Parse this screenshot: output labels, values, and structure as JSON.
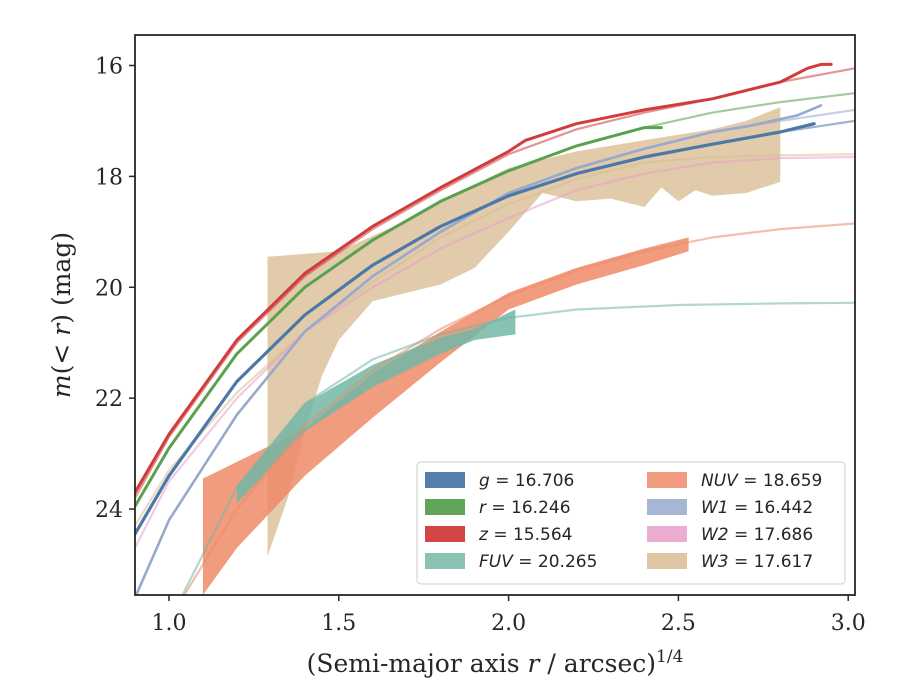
{
  "chart_data": {
    "type": "line",
    "xlabel_main": "(Semi-major axis ",
    "xlabel_var": "r",
    "xlabel_tail": " / arcsec)",
    "xlabel_exp": "1/4",
    "ylabel_main": "m",
    "ylabel_paren": "(< ",
    "ylabel_var": "r",
    "ylabel_tail": ") (mag)",
    "xlim": [
      0.9,
      3.02
    ],
    "ylim": [
      25.55,
      15.45
    ],
    "y_inverted": true,
    "x_ticks": [
      1.0,
      1.5,
      2.0,
      2.5,
      3.0
    ],
    "x_tick_labels": [
      "1.0",
      "1.5",
      "2.0",
      "2.5",
      "3.0"
    ],
    "y_ticks": [
      16,
      18,
      20,
      22,
      24
    ],
    "y_tick_labels": [
      "16",
      "18",
      "20",
      "22",
      "24"
    ],
    "grid": false,
    "legend_position": "lower-right",
    "series": [
      {
        "name": "g",
        "total": "16.706",
        "color": "#4c78a8",
        "model": [
          [
            0.9,
            24.45
          ],
          [
            1.0,
            23.4
          ],
          [
            1.2,
            21.7
          ],
          [
            1.4,
            20.5
          ],
          [
            1.6,
            19.6
          ],
          [
            1.8,
            18.9
          ],
          [
            2.0,
            18.35
          ],
          [
            2.2,
            17.95
          ],
          [
            2.4,
            17.65
          ],
          [
            2.6,
            17.42
          ],
          [
            2.8,
            17.2
          ],
          [
            3.02,
            17.0
          ]
        ],
        "data_end": 2.9
      },
      {
        "name": "r",
        "total": "16.246",
        "color": "#59a14f",
        "model": [
          [
            0.9,
            23.95
          ],
          [
            1.0,
            22.9
          ],
          [
            1.2,
            21.2
          ],
          [
            1.4,
            20.0
          ],
          [
            1.6,
            19.15
          ],
          [
            1.8,
            18.45
          ],
          [
            2.0,
            17.9
          ],
          [
            2.2,
            17.45
          ],
          [
            2.4,
            17.12
          ],
          [
            2.6,
            16.85
          ],
          [
            2.8,
            16.66
          ],
          [
            3.02,
            16.5
          ]
        ],
        "data_end": 2.45
      },
      {
        "name": "z",
        "total": "15.564",
        "color": "#d03c3c",
        "model": [
          [
            0.9,
            23.8
          ],
          [
            1.0,
            22.7
          ],
          [
            1.2,
            21.0
          ],
          [
            1.4,
            19.8
          ],
          [
            1.6,
            18.95
          ],
          [
            1.8,
            18.25
          ],
          [
            2.0,
            17.6
          ],
          [
            2.2,
            17.15
          ],
          [
            2.4,
            16.85
          ],
          [
            2.6,
            16.6
          ],
          [
            2.8,
            16.3
          ],
          [
            3.02,
            16.05
          ]
        ],
        "data": [
          [
            0.9,
            23.7
          ],
          [
            1.0,
            22.65
          ],
          [
            1.2,
            20.95
          ],
          [
            1.4,
            19.75
          ],
          [
            1.6,
            18.9
          ],
          [
            1.8,
            18.2
          ],
          [
            2.0,
            17.55
          ],
          [
            2.05,
            17.35
          ],
          [
            2.2,
            17.05
          ],
          [
            2.4,
            16.8
          ],
          [
            2.6,
            16.6
          ],
          [
            2.8,
            16.3
          ],
          [
            2.88,
            16.05
          ],
          [
            2.92,
            15.98
          ],
          [
            2.95,
            15.98
          ]
        ]
      },
      {
        "name": "FUV",
        "total": "20.265",
        "color": "#72b7a6",
        "model": [
          [
            1.04,
            25.55
          ],
          [
            1.2,
            23.6
          ],
          [
            1.4,
            22.1
          ],
          [
            1.6,
            21.3
          ],
          [
            1.8,
            20.85
          ],
          [
            2.0,
            20.55
          ],
          [
            2.2,
            20.4
          ],
          [
            2.5,
            20.32
          ],
          [
            2.8,
            20.29
          ],
          [
            3.02,
            20.28
          ]
        ],
        "band_upper": [
          [
            1.2,
            23.6
          ],
          [
            1.4,
            22.1
          ],
          [
            1.6,
            21.4
          ],
          [
            1.8,
            20.9
          ],
          [
            1.9,
            20.75
          ],
          [
            2.02,
            20.4
          ]
        ],
        "band_lower": [
          [
            2.02,
            20.85
          ],
          [
            1.9,
            20.95
          ],
          [
            1.8,
            21.2
          ],
          [
            1.6,
            21.8
          ],
          [
            1.4,
            22.6
          ],
          [
            1.2,
            23.9
          ]
        ]
      },
      {
        "name": "NUV",
        "total": "18.659",
        "color": "#ee8a68",
        "model": [
          [
            1.0,
            26.0
          ],
          [
            1.2,
            24.0
          ],
          [
            1.4,
            22.5
          ],
          [
            1.6,
            21.5
          ],
          [
            1.8,
            20.75
          ],
          [
            2.0,
            20.15
          ],
          [
            2.2,
            19.7
          ],
          [
            2.4,
            19.35
          ],
          [
            2.6,
            19.1
          ],
          [
            2.8,
            18.95
          ],
          [
            3.02,
            18.85
          ]
        ],
        "band_upper": [
          [
            1.1,
            23.45
          ],
          [
            1.3,
            22.85
          ],
          [
            1.4,
            22.55
          ],
          [
            1.6,
            21.55
          ],
          [
            1.8,
            20.8
          ],
          [
            2.0,
            20.1
          ],
          [
            2.2,
            19.65
          ],
          [
            2.4,
            19.3
          ],
          [
            2.53,
            19.1
          ]
        ],
        "band_lower": [
          [
            2.53,
            19.35
          ],
          [
            2.4,
            19.6
          ],
          [
            2.2,
            19.95
          ],
          [
            2.0,
            20.4
          ],
          [
            1.8,
            21.35
          ],
          [
            1.6,
            22.35
          ],
          [
            1.4,
            23.4
          ],
          [
            1.2,
            24.7
          ],
          [
            1.1,
            25.55
          ]
        ]
      },
      {
        "name": "W1",
        "total": "16.442",
        "color": "#98a9cd",
        "model": [
          [
            0.9,
            25.6
          ],
          [
            1.0,
            24.2
          ],
          [
            1.2,
            22.3
          ],
          [
            1.4,
            20.8
          ],
          [
            1.6,
            19.8
          ],
          [
            1.8,
            19.0
          ],
          [
            2.0,
            18.3
          ],
          [
            2.2,
            17.85
          ],
          [
            2.4,
            17.5
          ],
          [
            2.6,
            17.2
          ],
          [
            2.8,
            17.0
          ],
          [
            3.02,
            16.8
          ]
        ],
        "data_end": 2.92,
        "data_tail": [
          [
            2.7,
            17.1
          ],
          [
            2.85,
            16.9
          ],
          [
            2.92,
            16.72
          ]
        ]
      },
      {
        "name": "W2",
        "total": "17.686",
        "color": "#e8a0c8",
        "model": [
          [
            0.9,
            24.7
          ],
          [
            1.0,
            23.5
          ],
          [
            1.2,
            22.0
          ],
          [
            1.4,
            20.8
          ],
          [
            1.6,
            20.0
          ],
          [
            1.8,
            19.3
          ],
          [
            2.0,
            18.75
          ],
          [
            2.2,
            18.25
          ],
          [
            2.4,
            17.95
          ],
          [
            2.6,
            17.75
          ],
          [
            2.8,
            17.67
          ],
          [
            3.02,
            17.65
          ]
        ]
      },
      {
        "name": "W3",
        "total": "17.617",
        "color": "#d9bd94",
        "model": [
          [
            0.9,
            24.3
          ],
          [
            1.0,
            23.3
          ],
          [
            1.2,
            21.9
          ],
          [
            1.4,
            20.8
          ],
          [
            1.6,
            19.9
          ],
          [
            1.8,
            19.1
          ],
          [
            2.0,
            18.5
          ],
          [
            2.2,
            18.05
          ],
          [
            2.4,
            17.75
          ],
          [
            2.6,
            17.65
          ],
          [
            2.8,
            17.62
          ],
          [
            3.02,
            17.6
          ]
        ],
        "band_upper": [
          [
            1.29,
            19.45
          ],
          [
            1.5,
            19.35
          ],
          [
            1.7,
            18.8
          ],
          [
            1.9,
            18.15
          ],
          [
            2.0,
            17.85
          ],
          [
            2.2,
            17.55
          ],
          [
            2.4,
            17.35
          ],
          [
            2.6,
            17.15
          ],
          [
            2.7,
            17.0
          ],
          [
            2.8,
            16.75
          ]
        ],
        "band_lower": [
          [
            2.8,
            18.1
          ],
          [
            2.7,
            18.3
          ],
          [
            2.6,
            18.35
          ],
          [
            2.55,
            18.25
          ],
          [
            2.5,
            18.45
          ],
          [
            2.45,
            18.2
          ],
          [
            2.4,
            18.55
          ],
          [
            2.3,
            18.4
          ],
          [
            2.2,
            18.45
          ],
          [
            2.1,
            18.3
          ],
          [
            2.0,
            19.0
          ],
          [
            1.9,
            19.65
          ],
          [
            1.8,
            19.95
          ],
          [
            1.7,
            20.1
          ],
          [
            1.6,
            20.25
          ],
          [
            1.5,
            20.95
          ],
          [
            1.45,
            21.6
          ],
          [
            1.4,
            22.6
          ],
          [
            1.35,
            23.8
          ],
          [
            1.29,
            24.85
          ]
        ]
      }
    ]
  }
}
